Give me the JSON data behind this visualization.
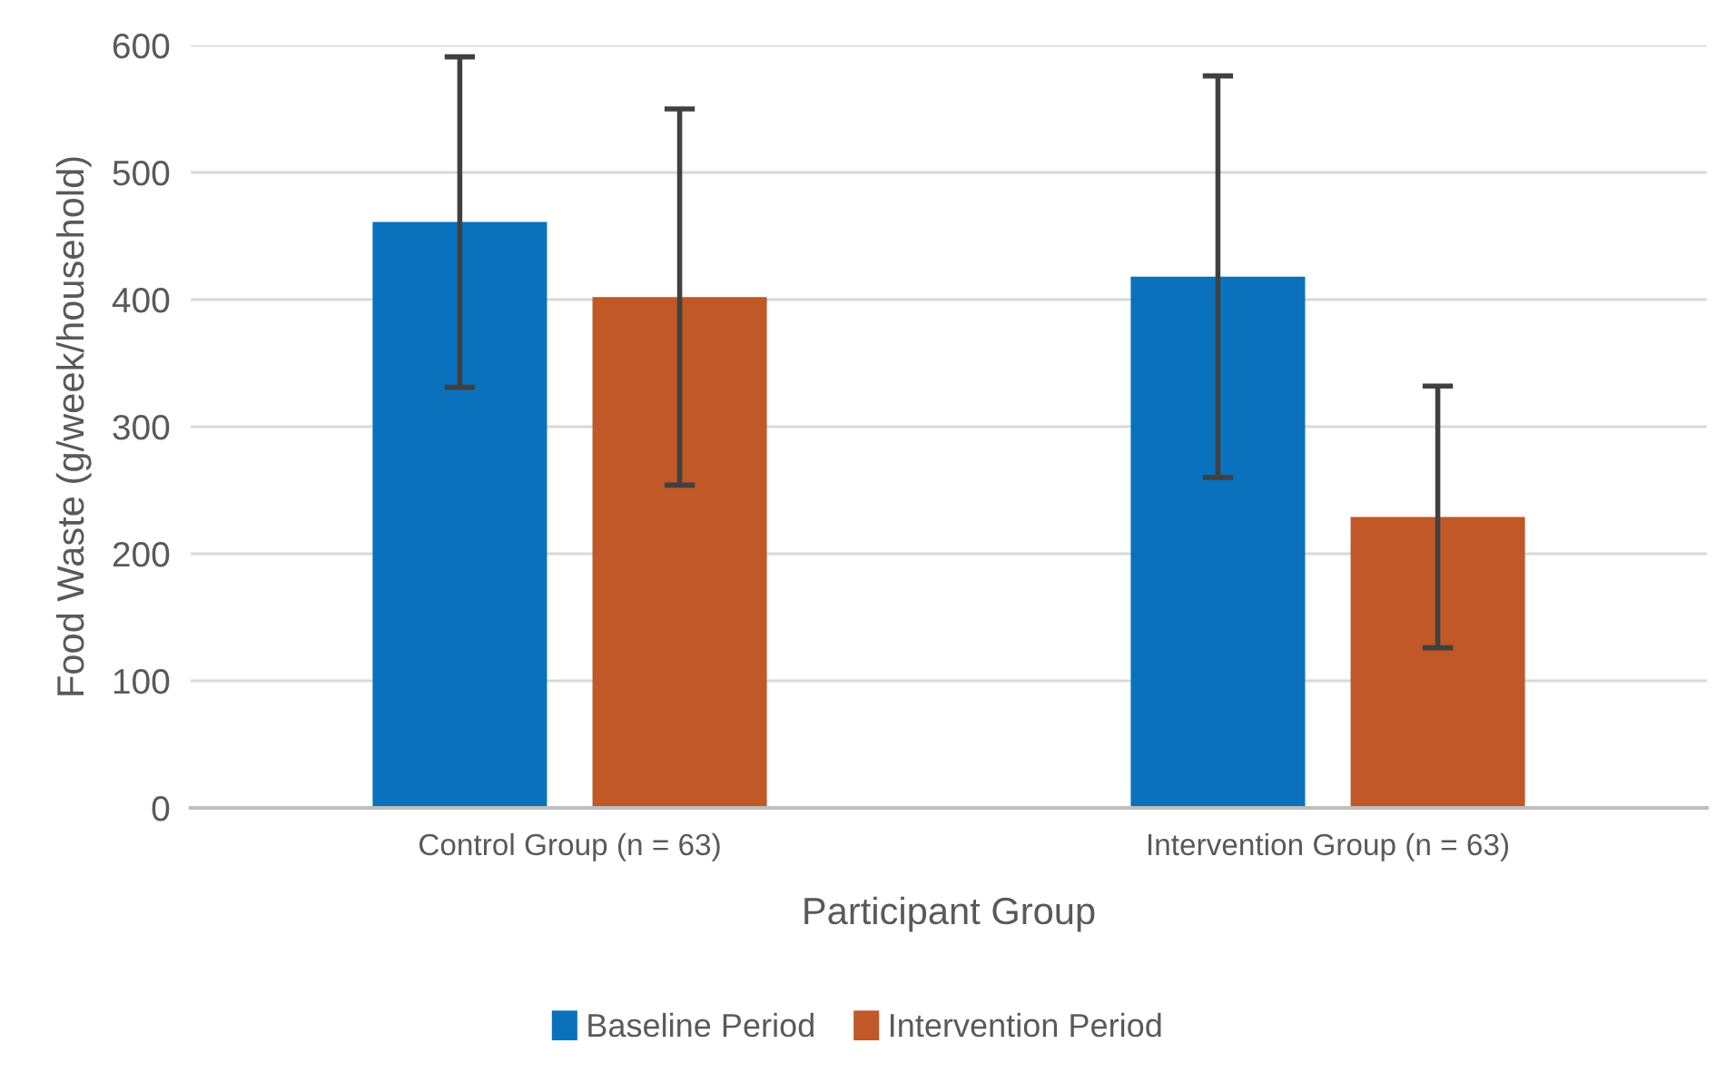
{
  "chart_data": {
    "type": "bar",
    "xlabel": "Participant Group",
    "ylabel": "Food Waste (g/week/household)",
    "categories": [
      "Control Group (n = 63)",
      "Intervention Group (n = 63)"
    ],
    "series": [
      {
        "name": "Baseline Period",
        "color": "#0a72bc",
        "values": [
          461,
          418
        ],
        "errors": [
          130,
          158
        ]
      },
      {
        "name": "Intervention Period",
        "color": "#c05827",
        "values": [
          402,
          229
        ],
        "errors": [
          148,
          103
        ]
      }
    ],
    "ylim": [
      0,
      600
    ],
    "yticks": [
      0,
      100,
      200,
      300,
      400,
      500,
      600
    ],
    "grid": "y",
    "legend": "bottom"
  }
}
